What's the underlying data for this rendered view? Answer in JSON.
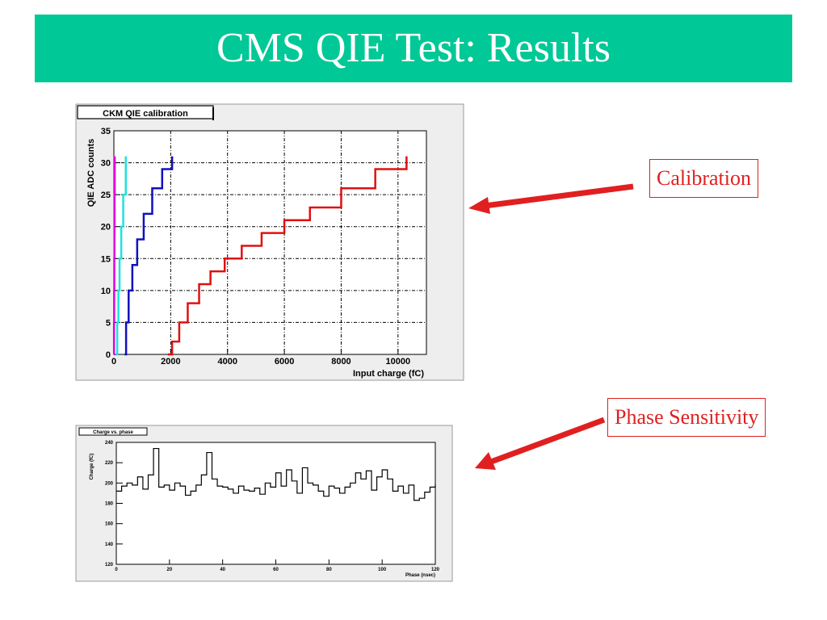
{
  "slide": {
    "title": "CMS QIE Test: Results",
    "title_bar_color": "#00c896",
    "callouts": {
      "calibration": "Calibration",
      "phase": "Phase Sensitivity"
    },
    "callout_color": "#e02020"
  },
  "chart_data": [
    {
      "type": "line",
      "title": "CKM QIE calibration",
      "xlabel": "Input charge (fC)",
      "ylabel": "QIE ADC counts",
      "xlim": [
        0,
        11000
      ],
      "ylim": [
        0,
        35
      ],
      "xticks": [
        0,
        2000,
        4000,
        6000,
        8000,
        10000
      ],
      "yticks": [
        0,
        5,
        10,
        15,
        20,
        25,
        30,
        35
      ],
      "grid": true,
      "series": [
        {
          "color": "#e000e0",
          "x": [
            0,
            5,
            10,
            15,
            20,
            25,
            30
          ],
          "y": [
            0,
            5,
            10,
            15,
            20,
            25,
            31
          ]
        },
        {
          "color": "#20e0e0",
          "x": [
            80,
            120,
            160,
            200,
            260,
            330,
            420
          ],
          "y": [
            0,
            5,
            10,
            15,
            20,
            25,
            31
          ]
        },
        {
          "color": "#1010c0",
          "x": [
            380,
            430,
            520,
            650,
            820,
            1050,
            1350,
            1700,
            2050
          ],
          "y": [
            0,
            5,
            10,
            14,
            18,
            22,
            26,
            29,
            31
          ]
        },
        {
          "color": "#e01010",
          "x": [
            1900,
            2050,
            2300,
            2600,
            3000,
            3400,
            3900,
            4500,
            5200,
            6000,
            6900,
            8000,
            9200,
            10300
          ],
          "y": [
            0,
            2,
            5,
            8,
            11,
            13,
            15,
            17,
            19,
            21,
            23,
            26,
            29,
            31
          ]
        }
      ]
    },
    {
      "type": "line",
      "title": "Charge vs. phase",
      "xlabel": "Phase (nsec)",
      "ylabel": "Charge (fC)",
      "xlim": [
        0,
        120
      ],
      "ylim": [
        120,
        240
      ],
      "xticks": [
        0,
        20,
        40,
        60,
        80,
        100,
        120
      ],
      "yticks": [
        120,
        140,
        160,
        180,
        200,
        220,
        240
      ],
      "grid": false,
      "series": [
        {
          "color": "#000000",
          "x": [
            0,
            2,
            4,
            6,
            8,
            10,
            12,
            14,
            16,
            18,
            20,
            22,
            24,
            26,
            28,
            30,
            32,
            34,
            36,
            38,
            40,
            42,
            44,
            46,
            48,
            50,
            52,
            54,
            56,
            58,
            60,
            62,
            64,
            66,
            68,
            70,
            72,
            74,
            76,
            78,
            80,
            82,
            84,
            86,
            88,
            90,
            92,
            94,
            96,
            98,
            100,
            102,
            104,
            106,
            108,
            110,
            112,
            114,
            116,
            118,
            120
          ],
          "y": [
            192,
            197,
            200,
            198,
            206,
            194,
            208,
            234,
            196,
            198,
            193,
            200,
            197,
            188,
            192,
            198,
            208,
            230,
            204,
            197,
            196,
            194,
            190,
            197,
            193,
            192,
            195,
            189,
            200,
            196,
            210,
            197,
            213,
            202,
            190,
            215,
            200,
            198,
            192,
            187,
            197,
            195,
            190,
            196,
            200,
            210,
            204,
            212,
            193,
            206,
            213,
            204,
            192,
            197,
            190,
            198,
            183,
            185,
            191,
            196,
            199
          ]
        }
      ]
    }
  ]
}
